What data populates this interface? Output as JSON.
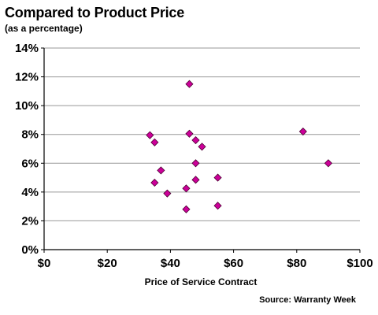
{
  "header": {
    "title": "Compared to Product Price",
    "subtitle": "(as a percentage)"
  },
  "footer": {
    "source": "Source: Warranty Week"
  },
  "colors": {
    "marker_fill": "#cc0099",
    "marker_stroke": "#4d0033",
    "grid": "#999999",
    "axis": "#000000"
  },
  "chart_data": {
    "type": "scatter",
    "title": "Compared to Product Price",
    "subtitle": "(as a percentage)",
    "xlabel": "Price of Service Contract",
    "ylabel": "",
    "xlim": [
      0,
      100
    ],
    "ylim": [
      0,
      14
    ],
    "x_ticks": [
      0,
      20,
      40,
      60,
      80,
      100
    ],
    "x_tick_labels": [
      "$0",
      "$20",
      "$40",
      "$60",
      "$80",
      "$100"
    ],
    "y_ticks": [
      0,
      2,
      4,
      6,
      8,
      10,
      12,
      14
    ],
    "y_tick_labels": [
      "0%",
      "2%",
      "4%",
      "6%",
      "8%",
      "10%",
      "12%",
      "14%"
    ],
    "grid": "horizontal",
    "legend": "none",
    "series": [
      {
        "marker": "diamond",
        "points": [
          {
            "x": 46,
            "y": 11.5
          },
          {
            "x": 33.5,
            "y": 7.95
          },
          {
            "x": 35,
            "y": 7.45
          },
          {
            "x": 46,
            "y": 8.05
          },
          {
            "x": 48,
            "y": 7.6
          },
          {
            "x": 50,
            "y": 7.15
          },
          {
            "x": 82,
            "y": 8.2
          },
          {
            "x": 90,
            "y": 6.0
          },
          {
            "x": 48,
            "y": 6.0
          },
          {
            "x": 37,
            "y": 5.5
          },
          {
            "x": 35,
            "y": 4.65
          },
          {
            "x": 39,
            "y": 3.9
          },
          {
            "x": 45,
            "y": 4.25
          },
          {
            "x": 48,
            "y": 4.85
          },
          {
            "x": 55,
            "y": 5.0
          },
          {
            "x": 45,
            "y": 2.8
          },
          {
            "x": 55,
            "y": 3.05
          }
        ]
      }
    ]
  }
}
